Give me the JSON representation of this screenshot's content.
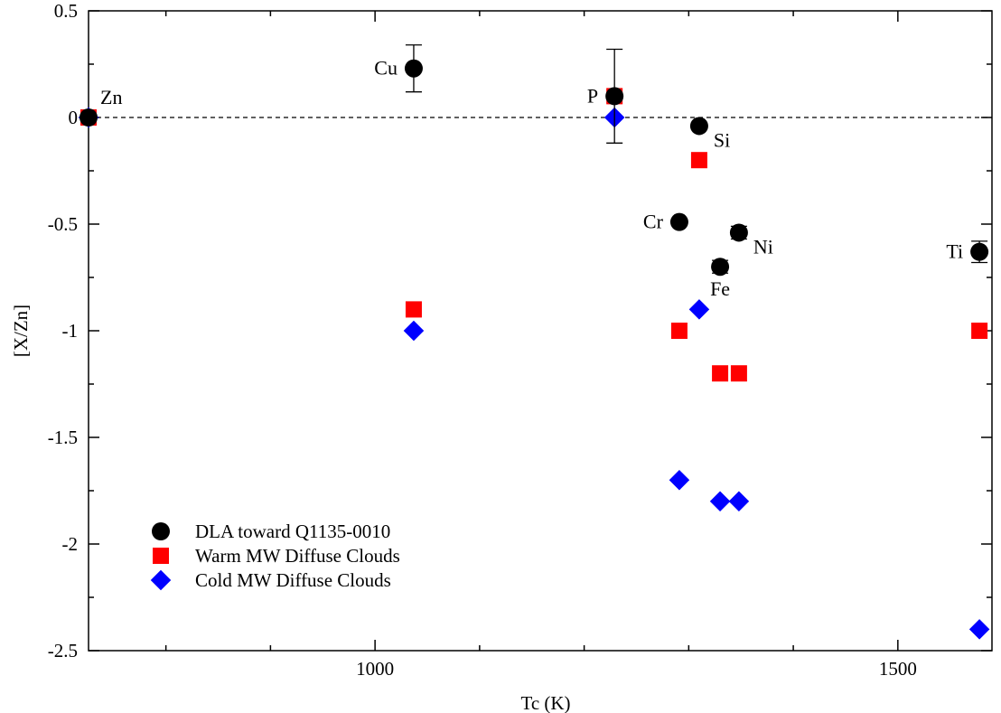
{
  "chart_data": {
    "type": "scatter",
    "xlabel": "Tc (K)",
    "ylabel": "[X/Zn]",
    "xlim": [
      726,
      1590
    ],
    "ylim": [
      -2.5,
      0.5
    ],
    "x_ticks": [
      {
        "value": 1000,
        "label": "1000"
      },
      {
        "value": 1500,
        "label": "1500"
      }
    ],
    "x_minor_ticks": [
      800,
      900,
      1100,
      1200,
      1300,
      1400
    ],
    "y_ticks": [
      {
        "value": 0.5,
        "label": "0.5"
      },
      {
        "value": 0,
        "label": "0"
      },
      {
        "value": -0.5,
        "label": "-0.5"
      },
      {
        "value": -1,
        "label": "-1"
      },
      {
        "value": -1.5,
        "label": "-1.5"
      },
      {
        "value": -2,
        "label": "-2"
      },
      {
        "value": -2.5,
        "label": "-2.5"
      }
    ],
    "reference_line": {
      "y": 0,
      "style": "dashed"
    },
    "grid": false,
    "legend_position": "bottom-left",
    "series": [
      {
        "name": "DLA toward Q1135-0010",
        "marker": "circle",
        "color": "#000000",
        "points": [
          {
            "x": 726,
            "y": 0.0
          },
          {
            "x": 1037,
            "y": 0.23,
            "yerr_low": 0.11,
            "yerr_high": 0.11
          },
          {
            "x": 1229,
            "y": 0.1,
            "yerr_low": 0.22,
            "yerr_high": 0.22
          },
          {
            "x": 1310,
            "y": -0.04
          },
          {
            "x": 1291,
            "y": -0.49
          },
          {
            "x": 1348,
            "y": -0.54,
            "yerr_low": 0.03,
            "yerr_high": 0.03
          },
          {
            "x": 1330,
            "y": -0.7,
            "yerr_low": 0.03,
            "yerr_high": 0.03
          },
          {
            "x": 1578,
            "y": -0.63,
            "yerr_low": 0.05,
            "yerr_high": 0.05
          }
        ]
      },
      {
        "name": "Warm MW Diffuse Clouds",
        "marker": "square",
        "color": "#ff0000",
        "points": [
          {
            "x": 726,
            "y": 0.0
          },
          {
            "x": 1037,
            "y": -0.9
          },
          {
            "x": 1229,
            "y": 0.1
          },
          {
            "x": 1310,
            "y": -0.2
          },
          {
            "x": 1291,
            "y": -1.0
          },
          {
            "x": 1348,
            "y": -1.2
          },
          {
            "x": 1330,
            "y": -1.2
          },
          {
            "x": 1578,
            "y": -1.0
          }
        ]
      },
      {
        "name": "Cold MW Diffuse Clouds",
        "marker": "diamond",
        "color": "#0000ff",
        "points": [
          {
            "x": 726,
            "y": 0.0
          },
          {
            "x": 1037,
            "y": -1.0
          },
          {
            "x": 1229,
            "y": 0.0
          },
          {
            "x": 1310,
            "y": -0.9
          },
          {
            "x": 1291,
            "y": -1.7
          },
          {
            "x": 1348,
            "y": -1.8
          },
          {
            "x": 1330,
            "y": -1.8
          },
          {
            "x": 1578,
            "y": -2.4
          }
        ]
      }
    ],
    "annotations": [
      {
        "text": "Zn",
        "x": 726,
        "y": 0.0,
        "anchor": "upper-right"
      },
      {
        "text": "Cu",
        "x": 1037,
        "y": 0.23,
        "anchor": "left"
      },
      {
        "text": "P",
        "x": 1229,
        "y": 0.1,
        "anchor": "left"
      },
      {
        "text": "Si",
        "x": 1310,
        "y": -0.04,
        "anchor": "lower-right"
      },
      {
        "text": "Cr",
        "x": 1291,
        "y": -0.49,
        "anchor": "left"
      },
      {
        "text": "Ni",
        "x": 1348,
        "y": -0.54,
        "anchor": "lower-right"
      },
      {
        "text": "Fe",
        "x": 1330,
        "y": -0.7,
        "anchor": "below"
      },
      {
        "text": "Ti",
        "x": 1578,
        "y": -0.63,
        "anchor": "left"
      }
    ]
  }
}
